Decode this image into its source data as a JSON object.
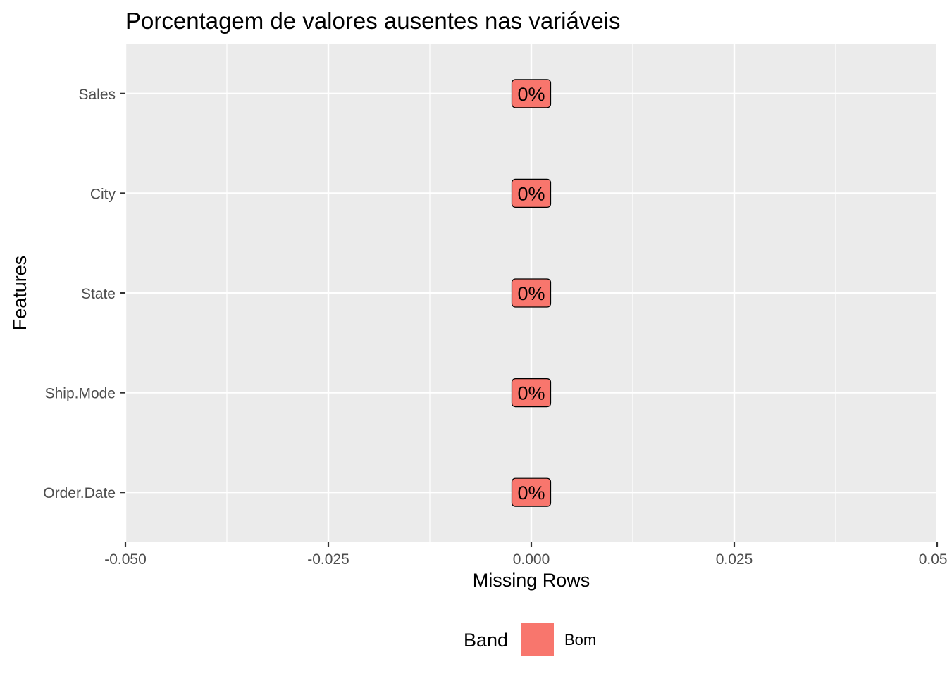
{
  "chart_data": {
    "type": "bar",
    "orientation": "horizontal",
    "title": "Porcentagem de valores ausentes nas variáveis",
    "xlabel": "Missing Rows",
    "ylabel": "Features",
    "categories": [
      "Order.Date",
      "Ship.Mode",
      "State",
      "City",
      "Sales"
    ],
    "values": [
      0,
      0,
      0,
      0,
      0
    ],
    "data_labels": [
      "0%",
      "0%",
      "0%",
      "0%",
      "0%"
    ],
    "bands": [
      "Bom",
      "Bom",
      "Bom",
      "Bom",
      "Bom"
    ],
    "xlim": [
      -0.05,
      0.05
    ],
    "x_ticks": [
      -0.05,
      -0.025,
      0,
      0.025,
      0.05
    ],
    "x_tick_labels": [
      "-0.050",
      "-0.025",
      "0.000",
      "0.025",
      "0.050"
    ],
    "grid": true,
    "legend": {
      "title": "Band",
      "placement": "bottom",
      "entries": [
        {
          "label": "Bom",
          "color": "#F8766D"
        }
      ]
    },
    "colors": {
      "panel_background": "#EBEBEB",
      "grid": "#FFFFFF",
      "band_bom": "#F8766D"
    }
  }
}
